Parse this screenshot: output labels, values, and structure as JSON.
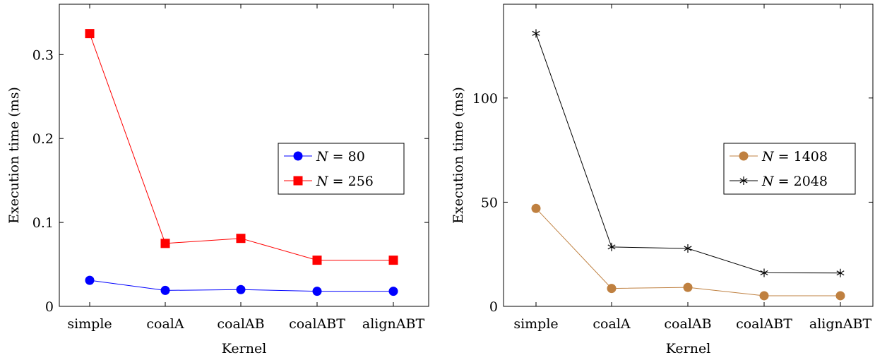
{
  "chart_data": [
    {
      "type": "line",
      "categories": [
        "simple",
        "coalA",
        "coalAB",
        "coalABT",
        "alignABT"
      ],
      "xlabel": "Kernel",
      "ylabel": "Execution time (ms)",
      "ylim": [
        0,
        0.36
      ],
      "yticks": [
        0,
        0.1,
        0.2,
        0.3
      ],
      "ytick_labels": [
        "0",
        "0.1",
        "0.2",
        "0.3"
      ],
      "grid": false,
      "legend_position": "center-right",
      "series": [
        {
          "name_var": "N",
          "name_eq": "=",
          "name_val": "80",
          "color": "#0000ff",
          "marker": "circle",
          "values": [
            0.031,
            0.019,
            0.02,
            0.018,
            0.018
          ]
        },
        {
          "name_var": "N",
          "name_eq": "=",
          "name_val": "256",
          "color": "#ff0000",
          "marker": "square",
          "values": [
            0.325,
            0.075,
            0.081,
            0.055,
            0.055
          ]
        }
      ]
    },
    {
      "type": "line",
      "categories": [
        "simple",
        "coalA",
        "coalAB",
        "coalABT",
        "alignABT"
      ],
      "xlabel": "Kernel",
      "ylabel": "Execution time (ms)",
      "ylim": [
        0,
        145
      ],
      "yticks": [
        0,
        50,
        100
      ],
      "ytick_labels": [
        "0",
        "50",
        "100"
      ],
      "grid": false,
      "legend_position": "center-right",
      "series": [
        {
          "name_var": "N",
          "name_eq": "=",
          "name_val": "1408",
          "color": "#bf8040",
          "marker": "circle",
          "values": [
            47,
            8.6,
            9.1,
            5.1,
            5.1
          ]
        },
        {
          "name_var": "N",
          "name_eq": "=",
          "name_val": "2048",
          "color": "#000000",
          "marker": "star",
          "values": [
            131,
            28.5,
            27.8,
            16.1,
            16.0
          ]
        }
      ]
    }
  ]
}
